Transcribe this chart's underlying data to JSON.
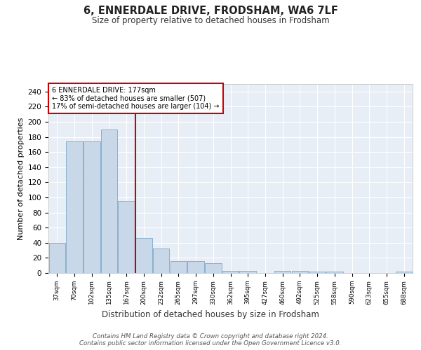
{
  "title": "6, ENNERDALE DRIVE, FRODSHAM, WA6 7LF",
  "subtitle": "Size of property relative to detached houses in Frodsham",
  "xlabel": "Distribution of detached houses by size in Frodsham",
  "ylabel": "Number of detached properties",
  "categories": [
    "37sqm",
    "70sqm",
    "102sqm",
    "135sqm",
    "167sqm",
    "200sqm",
    "232sqm",
    "265sqm",
    "297sqm",
    "330sqm",
    "362sqm",
    "395sqm",
    "427sqm",
    "460sqm",
    "492sqm",
    "525sqm",
    "558sqm",
    "590sqm",
    "623sqm",
    "655sqm",
    "688sqm"
  ],
  "values": [
    40,
    174,
    174,
    190,
    95,
    46,
    32,
    16,
    16,
    13,
    3,
    3,
    0,
    3,
    3,
    2,
    2,
    0,
    0,
    0,
    2
  ],
  "bar_color": "#c8d8e8",
  "bar_edge_color": "#7aa8c8",
  "background_color": "#e8eef6",
  "grid_color": "#ffffff",
  "red_line_x": 4.5,
  "annotation_text": "6 ENNERDALE DRIVE: 177sqm\n← 83% of detached houses are smaller (507)\n17% of semi-detached houses are larger (104) →",
  "annotation_box_color": "#ffffff",
  "annotation_box_edge": "#cc0000",
  "red_line_color": "#cc0000",
  "footer": "Contains HM Land Registry data © Crown copyright and database right 2024.\nContains public sector information licensed under the Open Government Licence v3.0.",
  "yticks": [
    0,
    20,
    40,
    60,
    80,
    100,
    120,
    140,
    160,
    180,
    200,
    220,
    240
  ],
  "ylim": [
    0,
    250
  ]
}
